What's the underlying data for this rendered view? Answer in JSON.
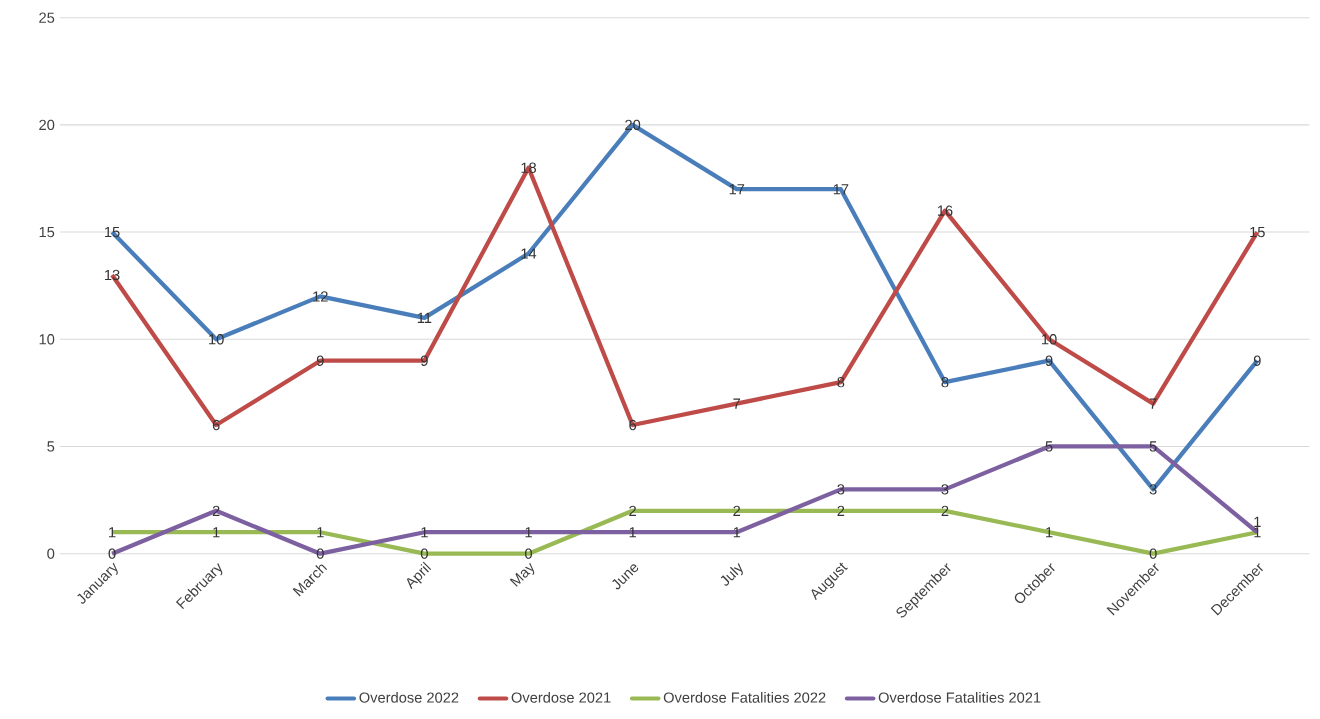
{
  "chart_data": {
    "type": "line",
    "categories": [
      "January",
      "February",
      "March",
      "April",
      "May",
      "June",
      "July",
      "August",
      "September",
      "October",
      "November",
      "December"
    ],
    "series": [
      {
        "name": "Overdose 2022",
        "color": "#4a7ebb",
        "values": [
          15,
          10,
          12,
          11,
          14,
          20,
          17,
          17,
          8,
          9,
          3,
          9
        ]
      },
      {
        "name": "Overdose 2021",
        "color": "#be4b48",
        "values": [
          13,
          6,
          9,
          9,
          18,
          6,
          7,
          8,
          16,
          10,
          7,
          15
        ]
      },
      {
        "name": "Overdose Fatalities 2022",
        "color": "#98b954",
        "values": [
          1,
          1,
          1,
          0,
          0,
          2,
          2,
          2,
          2,
          1,
          0,
          1
        ]
      },
      {
        "name": "Overdose Fatalities 2021",
        "color": "#7d60a0",
        "values": [
          0,
          2,
          0,
          1,
          1,
          1,
          1,
          3,
          3,
          5,
          5,
          1
        ]
      }
    ],
    "ylim": [
      0,
      25
    ],
    "yticks": [
      0,
      5,
      10,
      15,
      20,
      25
    ],
    "grid": "y",
    "legend": "bottom",
    "data_labels": true,
    "marker": "none",
    "line_style": "solid"
  }
}
